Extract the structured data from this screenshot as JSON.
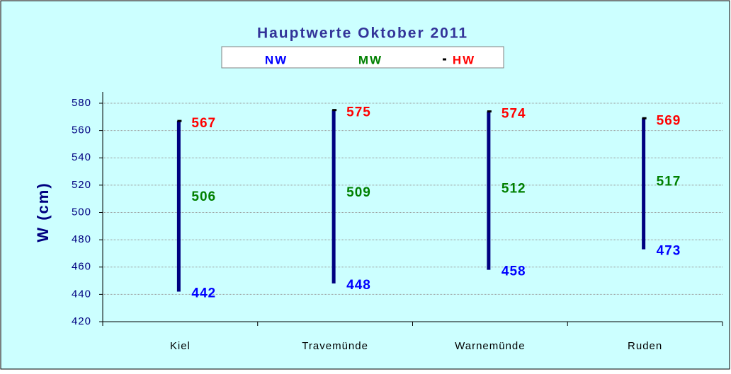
{
  "chart_data": {
    "type": "hilo",
    "title": "Hauptwerte Oktober 2011",
    "y_label": "W (cm)",
    "categories": [
      "Kiel",
      "Travemünde",
      "Warnemünde",
      "Ruden"
    ],
    "series": [
      {
        "name": "NW",
        "color": "#0000ff",
        "values": [
          442,
          448,
          458,
          473
        ]
      },
      {
        "name": "MW",
        "color": "#008000",
        "values": [
          506,
          509,
          512,
          517
        ]
      },
      {
        "name": "HW",
        "color": "#ff0000",
        "values": [
          567,
          575,
          574,
          569
        ]
      }
    ],
    "bar_color": "#000080",
    "marker_color": "#000000",
    "ylim": [
      420,
      580
    ],
    "yticks": [
      420,
      440,
      460,
      480,
      500,
      520,
      540,
      560,
      580
    ],
    "grid": true
  }
}
